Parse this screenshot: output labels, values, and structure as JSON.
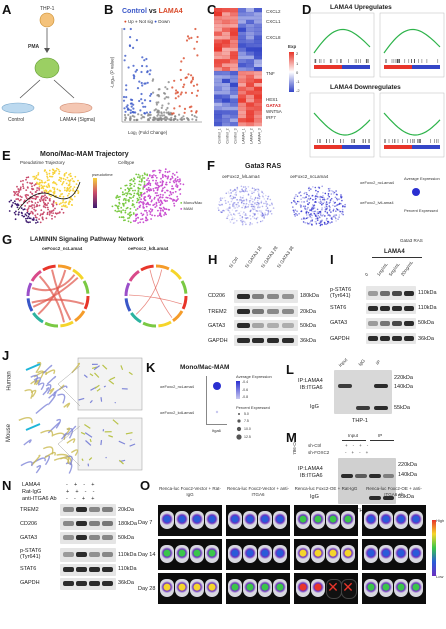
{
  "panels": {
    "A": {
      "letter": "A",
      "cell_line": "THP-1",
      "treatment": "PMA",
      "groups": [
        "Control",
        "LAMA4 (Sigma)"
      ]
    },
    "B": {
      "letter": "B",
      "title_part1": "Control",
      "title_vs": " vs ",
      "title_part2": "LAMA4",
      "legend": [
        "Up",
        "Not sig",
        "Down"
      ],
      "xlabel": "Log₂ (Fold Change)",
      "ylabel": "-Log₁₀ (P value)"
    },
    "C": {
      "letter": "C",
      "genes": [
        "CXCL2",
        "CXCL1",
        "CXCL8",
        "TNF",
        "HES1",
        "GATA3",
        "WNT5A",
        "IRF7"
      ],
      "legend_title": "Exp",
      "legend_ticks": [
        "2",
        "1",
        "0",
        "-1",
        "-2"
      ],
      "samples": [
        "Control_1",
        "Control_2",
        "Control_3",
        "LAMA4_1",
        "LAMA4_2",
        "LAMA4_3"
      ]
    },
    "D": {
      "letter": "D",
      "up_title": "LAMA4 Upregulates",
      "down_title": "LAMA4 Downregulates"
    },
    "E": {
      "letter": "E",
      "title": "Mono/Mac-MAM Trajectory",
      "sub1": "Pseudotime Trajectory",
      "sub2": "Celltype",
      "legend1": "pseudotime",
      "legend2": [
        "Mono/Mac",
        "MAM"
      ]
    },
    "F": {
      "letter": "F",
      "title": "Gata3 RAS",
      "sub1": "oeFoxc2_lvlLama4",
      "sub2": "oeFoxc2_ncLama4",
      "legend_title": "Average Expression",
      "legend2_title": "Percent Expressed",
      "xlabel": "Gata3 RAS"
    },
    "G": {
      "letter": "G",
      "title": "LAMININ Signaling Pathway Network",
      "sub1": "oeFoxc2_ncLama4",
      "sub2": "oeFoxc2_kdLama4"
    },
    "H": {
      "letter": "H",
      "lanes": [
        "Si Ctrl",
        "Si GATA3 18",
        "Si GATA3 28",
        "Si GATA3 38"
      ],
      "proteins": [
        "CD206",
        "TREM2",
        "GATA3",
        "GAPDH"
      ],
      "sizes": [
        "180kDa",
        "20kDa",
        "50kDa",
        "36kDa"
      ]
    },
    "I": {
      "letter": "I",
      "header": "LAMA4",
      "lanes": [
        "0",
        "1ng/mL",
        "5ng/mL",
        "20ng/mL"
      ],
      "proteins": [
        "p-STAT6 (Tyr641)",
        "STAT6",
        "GATA3",
        "GAPDH"
      ],
      "sizes": [
        "110kDa",
        "110kDa",
        "50kDa",
        "36kDa"
      ]
    },
    "J": {
      "letter": "J",
      "species": [
        "Human",
        "Mouse"
      ]
    },
    "K": {
      "letter": "K",
      "title": "Mono/Mac-MAM",
      "rows": [
        "oeFoxc2_ncLama4",
        "oeFoxc2_kdLama4"
      ],
      "xlabel": "Itga6",
      "legend_title": "Average Expression",
      "legend_ticks": [
        "-0.4",
        "-0.6",
        "-0.8"
      ],
      "legend2_title": "Percent Expressed",
      "legend2_ticks": [
        "5.0",
        "7.5",
        "10.0",
        "12.5"
      ]
    },
    "L": {
      "letter": "L",
      "cols": [
        "Input",
        "IgG",
        "IP"
      ],
      "ip": "IP:LAMA4",
      "ib": "IB:ITGA6",
      "igg": "IgG",
      "sizes": [
        "220kDa",
        "140kDa",
        "55kDa"
      ],
      "cell": "THP-1"
    },
    "M": {
      "letter": "M",
      "side": "786-O",
      "rows": [
        "sh-Ctrl",
        "sh-FOXC2"
      ],
      "cols": [
        "Input",
        "IP"
      ],
      "ip": "IP:LAMA4",
      "ib": "IB:ITGA6",
      "igg": "IgG",
      "sizes": [
        "220kDa",
        "140kDa",
        "55kDa"
      ],
      "cell": "THP-1"
    },
    "N": {
      "letter": "N",
      "rows": [
        "LAMA4",
        "Rat-IgG",
        "anti-ITGA6 Ab"
      ],
      "proteins": [
        "TREM2",
        "CD206",
        "GATA3",
        "p-STAT6 (Tyr641)",
        "STAT6",
        "GAPDH"
      ],
      "sizes": [
        "20kDa",
        "180kDa",
        "50kDa",
        "110kDa",
        "110kDa",
        "36kDa"
      ]
    },
    "O": {
      "letter": "O",
      "groups": [
        "Renca-luc Foxc2-Vector + Rat-IgG",
        "Renca-luc Foxc2-Vector + anti-ITGA6",
        "Renca-luc Foxc2-OE + Rat-IgG",
        "Renca-luc Foxc2-OE + anti-ITGA6 Ab"
      ],
      "days": [
        "Day 7",
        "Day 14",
        "Day 28"
      ],
      "scale_high": "High",
      "scale_low": "Low"
    }
  },
  "colors": {
    "up": "#d94a2a",
    "down": "#3a57c8",
    "notsig": "#888888",
    "heat_hi": "#e8352a",
    "heat_lo": "#3446c7",
    "traj_a": "#f7d23a",
    "traj_b": "#3c1a6e",
    "mam": "#c94fd0",
    "monomac": "#7ac943"
  }
}
